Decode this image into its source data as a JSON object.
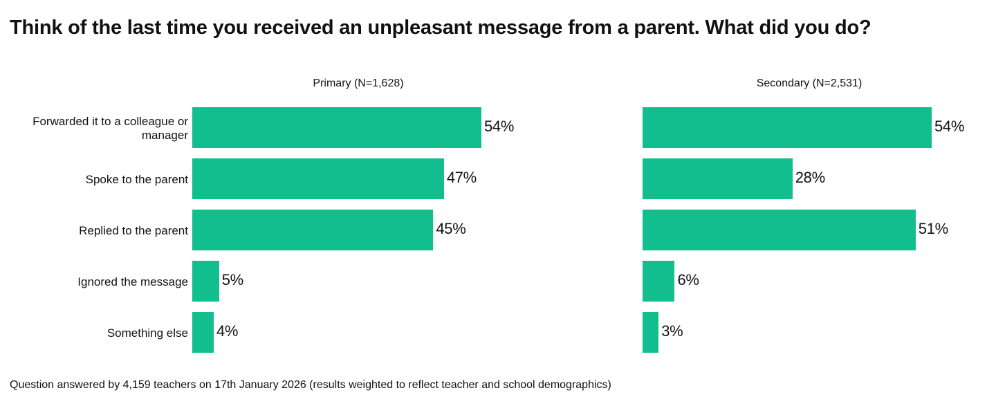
{
  "title": "Think of the last time you received an unpleasant message from a parent. What did you do?",
  "footer": "Question answered by 4,159 teachers on 17th January 2026 (results weighted to reflect teacher and school demographics)",
  "colors": {
    "bar": "#13BE8E"
  },
  "chart_data": {
    "type": "bar",
    "orientation": "horizontal",
    "categories": [
      "Forwarded it to a colleague or manager",
      "Spoke to the parent",
      "Replied to the parent",
      "Ignored the message",
      "Something else"
    ],
    "panels": [
      {
        "title": "Primary (N=1,628)",
        "values": [
          54,
          47,
          45,
          5,
          4
        ],
        "labels": [
          "54%",
          "47%",
          "45%",
          "5%",
          "4%"
        ]
      },
      {
        "title": "Secondary (N=2,531)",
        "values": [
          54,
          28,
          51,
          6,
          3
        ],
        "labels": [
          "54%",
          "28%",
          "51%",
          "6%",
          "3%"
        ]
      }
    ],
    "unit": "%",
    "grid": false,
    "legend": "none"
  }
}
